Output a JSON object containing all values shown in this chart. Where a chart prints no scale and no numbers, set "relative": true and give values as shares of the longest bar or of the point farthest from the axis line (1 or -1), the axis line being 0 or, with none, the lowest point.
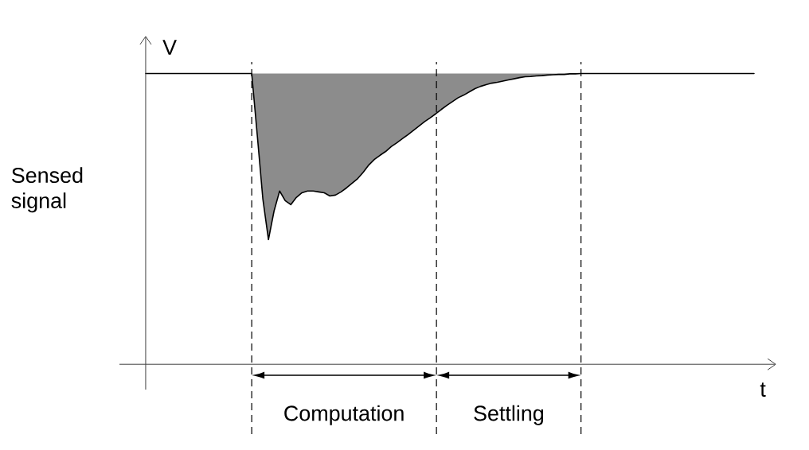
{
  "chart_data": {
    "type": "line",
    "relative": true,
    "xlabel": "t",
    "ylabel": "V",
    "marker": "none",
    "annotations": [
      "Sensed signal",
      "Computation",
      "Settling"
    ],
    "categories": [
      null,
      null,
      null,
      null,
      null,
      null,
      null,
      null,
      null,
      null,
      null,
      null,
      null,
      null,
      null,
      null,
      null,
      null,
      null,
      null,
      null,
      null,
      null,
      null,
      null,
      null,
      null,
      null,
      null,
      null,
      null,
      null,
      null,
      null,
      null,
      null,
      null,
      null,
      null,
      null,
      null,
      null,
      null,
      null,
      null,
      null,
      null,
      null,
      null,
      null,
      null,
      null,
      null,
      null,
      null,
      null,
      null,
      null,
      null,
      null,
      null,
      null,
      null,
      null,
      null,
      null,
      null,
      null,
      null,
      null,
      null,
      null,
      null,
      null,
      null,
      null,
      null,
      null,
      null,
      null,
      null,
      null,
      null,
      null,
      null,
      null,
      null,
      null,
      null,
      null,
      null,
      null,
      null,
      null,
      null,
      null,
      null,
      null,
      null,
      null,
      null,
      null,
      null,
      null,
      null,
      null,
      null,
      null,
      null,
      null
    ],
    "series": [
      {
        "color": "#000000",
        "line_style": "solid",
        "values": [
          1,
          1,
          1,
          1,
          1,
          1,
          1,
          1,
          1,
          1,
          1,
          1,
          1,
          1,
          1,
          1,
          1,
          1,
          1,
          1,
          0.787,
          0.568,
          0.429,
          0.527,
          0.596,
          0.563,
          0.549,
          0.574,
          0.59,
          0.596,
          0.596,
          0.593,
          0.59,
          0.579,
          0.582,
          0.593,
          0.607,
          0.623,
          0.639,
          0.661,
          0.686,
          0.705,
          0.719,
          0.732,
          0.749,
          0.762,
          0.776,
          0.79,
          0.805,
          0.82,
          0.835,
          0.848,
          0.862,
          0.877,
          0.891,
          0.904,
          0.917,
          0.926,
          0.937,
          0.948,
          0.956,
          0.962,
          0.967,
          0.97,
          0.974,
          0.978,
          0.982,
          0.986,
          0.989,
          0.99,
          0.992,
          0.993,
          0.995,
          0.996,
          0.997,
          0.997,
          0.999,
          0.999,
          1,
          1,
          1,
          1,
          1,
          1,
          1,
          1,
          1,
          1,
          1,
          1,
          1,
          1,
          1,
          1,
          1,
          1,
          1,
          1,
          1,
          1,
          1,
          1,
          1,
          1,
          1,
          1,
          1,
          1,
          1,
          1
        ],
        "lower": [
          null,
          null,
          null,
          null,
          null,
          null,
          null,
          null,
          null,
          null,
          null,
          null,
          null,
          null,
          null,
          null,
          null,
          null,
          null,
          1,
          0.787,
          0.568,
          0.429,
          0.527,
          0.596,
          0.563,
          0.549,
          0.574,
          0.59,
          0.596,
          0.596,
          0.593,
          0.59,
          0.579,
          0.582,
          0.593,
          0.607,
          0.623,
          0.639,
          0.661,
          0.686,
          0.705,
          0.719,
          0.732,
          0.749,
          0.762,
          0.776,
          0.79,
          0.805,
          0.82,
          0.835,
          0.848,
          0.862,
          0.877,
          0.891,
          0.904,
          0.917,
          0.926,
          0.937,
          0.948,
          0.956,
          0.962,
          0.967,
          0.97,
          0.974,
          0.978,
          0.982,
          0.986,
          0.989,
          0.99,
          0.992,
          0.993,
          0.995,
          0.996,
          0.997,
          0.997,
          0.999,
          0.999,
          1,
          null,
          null,
          null,
          null,
          null,
          null,
          null,
          null,
          null,
          null,
          null,
          null,
          null,
          null,
          null,
          null,
          null,
          null,
          null,
          null,
          null,
          null,
          null,
          null,
          null,
          null,
          null,
          null,
          null,
          null,
          null
        ],
        "upper": [
          null,
          null,
          null,
          null,
          null,
          null,
          null,
          null,
          null,
          null,
          null,
          null,
          null,
          null,
          null,
          null,
          null,
          null,
          null,
          1,
          1,
          1,
          1,
          1,
          1,
          1,
          1,
          1,
          1,
          1,
          1,
          1,
          1,
          1,
          1,
          1,
          1,
          1,
          1,
          1,
          1,
          1,
          1,
          1,
          1,
          1,
          1,
          1,
          1,
          1,
          1,
          1,
          1,
          1,
          1,
          1,
          1,
          1,
          1,
          1,
          1,
          1,
          1,
          1,
          1,
          1,
          1,
          1,
          1,
          1,
          1,
          1,
          1,
          1,
          1,
          1,
          1,
          1,
          1,
          null,
          null,
          null,
          null,
          null,
          null,
          null,
          null,
          null,
          null,
          null,
          null,
          null,
          null,
          null,
          null,
          null,
          null,
          null,
          null,
          null,
          null,
          null,
          null,
          null,
          null,
          null,
          null,
          null,
          null,
          null
        ]
      }
    ]
  }
}
